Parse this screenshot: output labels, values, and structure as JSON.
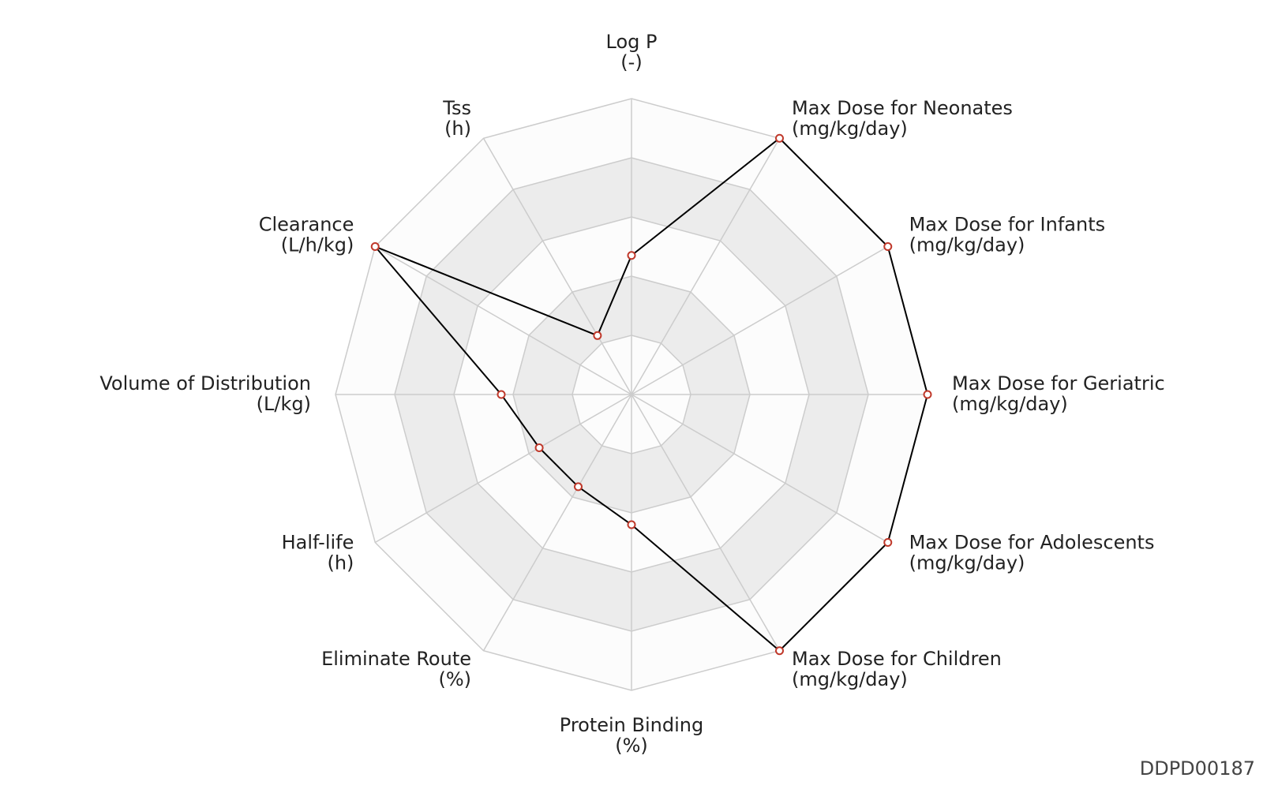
{
  "chart_data": {
    "type": "radar",
    "categories": [
      "Log P",
      "Max Dose for Neonates",
      "Max Dose for Infants",
      "Max Dose for Geriatric",
      "Max Dose for Adolescents",
      "Max Dose for Children",
      "Protein Binding",
      "Eliminate Route",
      "Half-life",
      "Volume of Distribution",
      "Clearance",
      "Tss"
    ],
    "units": [
      "(-)",
      "(mg/kg/day)",
      "(mg/kg/day)",
      "(mg/kg/day)",
      "(mg/kg/day)",
      "(mg/kg/day)",
      "(%)",
      "(%)",
      "(h)",
      "(L/kg)",
      "(L/h/kg)",
      "(h)"
    ],
    "values": [
      0.47,
      1.0,
      1.0,
      1.0,
      1.0,
      1.0,
      0.44,
      0.36,
      0.36,
      0.44,
      1.0,
      0.23
    ],
    "color": "#000000",
    "marker_color": "#c0392b",
    "rlim": [
      0,
      1
    ],
    "rticks": [
      0.2,
      0.4,
      0.6,
      0.8,
      1
    ],
    "band_colors": [
      "#fcfcfc",
      "#ececec"
    ],
    "grid_color": "#cccccc",
    "footer": "DDPD00187"
  }
}
